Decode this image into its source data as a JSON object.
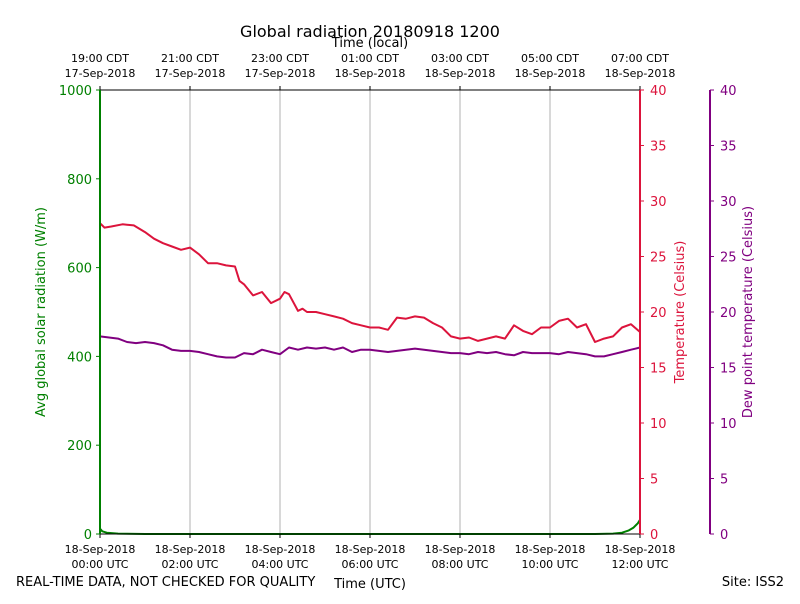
{
  "chart_data": {
    "type": "line",
    "title": "Global radiation 20180918 1200",
    "top_axis_title": "Time (local)",
    "xlabel": "Time (UTC)",
    "ylabel_left": "Avg global solar radiation (W/m)",
    "ylabel_right": "Temperature (Celsius)",
    "ylabel_far_right": "Dew point temperature (Celsius)",
    "xlim_hours_utc": [
      0,
      12
    ],
    "grid_vertical": true,
    "x_ticks_utc": [
      {
        "hour": 0,
        "line1": "18-Sep-2018",
        "line2": "00:00 UTC"
      },
      {
        "hour": 2,
        "line1": "18-Sep-2018",
        "line2": "02:00 UTC"
      },
      {
        "hour": 4,
        "line1": "18-Sep-2018",
        "line2": "04:00 UTC"
      },
      {
        "hour": 6,
        "line1": "18-Sep-2018",
        "line2": "06:00 UTC"
      },
      {
        "hour": 8,
        "line1": "18-Sep-2018",
        "line2": "08:00 UTC"
      },
      {
        "hour": 10,
        "line1": "18-Sep-2018",
        "line2": "10:00 UTC"
      },
      {
        "hour": 12,
        "line1": "18-Sep-2018",
        "line2": "12:00 UTC"
      }
    ],
    "x_ticks_local": [
      {
        "hour": 0,
        "line1": "19:00 CDT",
        "line2": "17-Sep-2018"
      },
      {
        "hour": 2,
        "line1": "21:00 CDT",
        "line2": "17-Sep-2018"
      },
      {
        "hour": 4,
        "line1": "23:00 CDT",
        "line2": "17-Sep-2018"
      },
      {
        "hour": 6,
        "line1": "01:00 CDT",
        "line2": "18-Sep-2018"
      },
      {
        "hour": 8,
        "line1": "03:00 CDT",
        "line2": "18-Sep-2018"
      },
      {
        "hour": 10,
        "line1": "05:00 CDT",
        "line2": "18-Sep-2018"
      },
      {
        "hour": 12,
        "line1": "07:00 CDT",
        "line2": "18-Sep-2018"
      }
    ],
    "y_left": {
      "ylim": [
        0,
        1000
      ],
      "ticks": [
        0,
        200,
        400,
        600,
        800,
        1000
      ],
      "color": "#008000"
    },
    "y_right": {
      "ylim": [
        0,
        40
      ],
      "ticks": [
        0,
        5,
        10,
        15,
        20,
        25,
        30,
        35,
        40
      ],
      "color": "#dc143c"
    },
    "y_far_right": {
      "ylim": [
        0,
        40
      ],
      "ticks": [
        0,
        5,
        10,
        15,
        20,
        25,
        30,
        35,
        40
      ],
      "color": "#800080"
    },
    "series": [
      {
        "name": "Avg global solar radiation",
        "axis": "left",
        "color": "#008000",
        "x": [
          0,
          0.05,
          0.15,
          0.4,
          1,
          3,
          6,
          9,
          11,
          11.4,
          11.6,
          11.75,
          11.85,
          11.95,
          12
        ],
        "values": [
          12,
          6,
          3,
          1,
          0,
          0,
          0,
          0,
          0,
          1,
          3,
          8,
          14,
          24,
          32
        ]
      },
      {
        "name": "Temperature",
        "axis": "right",
        "color": "#dc143c",
        "x": [
          0,
          0.1,
          0.25,
          0.5,
          0.75,
          1.0,
          1.2,
          1.4,
          1.6,
          1.8,
          2.0,
          2.2,
          2.4,
          2.6,
          2.8,
          3.0,
          3.1,
          3.2,
          3.4,
          3.6,
          3.8,
          4.0,
          4.1,
          4.2,
          4.4,
          4.5,
          4.6,
          4.8,
          5.0,
          5.2,
          5.4,
          5.6,
          5.8,
          6.0,
          6.2,
          6.4,
          6.6,
          6.8,
          7.0,
          7.2,
          7.4,
          7.6,
          7.8,
          8.0,
          8.2,
          8.4,
          8.6,
          8.8,
          9.0,
          9.2,
          9.4,
          9.6,
          9.8,
          10.0,
          10.2,
          10.4,
          10.6,
          10.8,
          11.0,
          11.2,
          11.4,
          11.6,
          11.8,
          12.0
        ],
        "values": [
          28.0,
          27.6,
          27.7,
          27.9,
          27.8,
          27.2,
          26.6,
          26.2,
          25.9,
          25.6,
          25.8,
          25.2,
          24.4,
          24.4,
          24.2,
          24.1,
          22.8,
          22.5,
          21.5,
          21.8,
          20.8,
          21.2,
          21.8,
          21.6,
          20.1,
          20.3,
          20.0,
          20.0,
          19.8,
          19.6,
          19.4,
          19.0,
          18.8,
          18.6,
          18.6,
          18.4,
          19.5,
          19.4,
          19.6,
          19.5,
          19.0,
          18.6,
          17.8,
          17.6,
          17.7,
          17.4,
          17.6,
          17.8,
          17.6,
          18.8,
          18.3,
          18.0,
          18.6,
          18.6,
          19.2,
          19.4,
          18.6,
          18.9,
          17.3,
          17.6,
          17.8,
          18.6,
          18.9,
          18.2
        ]
      },
      {
        "name": "Dew point temperature",
        "axis": "far_right",
        "color": "#800080",
        "x": [
          0,
          0.2,
          0.4,
          0.6,
          0.8,
          1.0,
          1.2,
          1.4,
          1.6,
          1.8,
          2.0,
          2.2,
          2.4,
          2.6,
          2.8,
          3.0,
          3.2,
          3.4,
          3.6,
          3.8,
          4.0,
          4.2,
          4.4,
          4.6,
          4.8,
          5.0,
          5.2,
          5.4,
          5.6,
          5.8,
          6.0,
          6.2,
          6.4,
          6.6,
          6.8,
          7.0,
          7.2,
          7.4,
          7.6,
          7.8,
          8.0,
          8.2,
          8.4,
          8.6,
          8.8,
          9.0,
          9.2,
          9.4,
          9.6,
          9.8,
          10.0,
          10.2,
          10.4,
          10.6,
          10.8,
          11.0,
          11.2,
          11.4,
          11.6,
          11.8,
          12.0
        ],
        "values": [
          17.8,
          17.7,
          17.6,
          17.3,
          17.2,
          17.3,
          17.2,
          17.0,
          16.6,
          16.5,
          16.5,
          16.4,
          16.2,
          16.0,
          15.9,
          15.9,
          16.3,
          16.2,
          16.6,
          16.4,
          16.2,
          16.8,
          16.6,
          16.8,
          16.7,
          16.8,
          16.6,
          16.8,
          16.4,
          16.6,
          16.6,
          16.5,
          16.4,
          16.5,
          16.6,
          16.7,
          16.6,
          16.5,
          16.4,
          16.3,
          16.3,
          16.2,
          16.4,
          16.3,
          16.4,
          16.2,
          16.1,
          16.4,
          16.3,
          16.3,
          16.3,
          16.2,
          16.4,
          16.3,
          16.2,
          16.0,
          16.0,
          16.2,
          16.4,
          16.6,
          16.8
        ]
      }
    ]
  },
  "footer": {
    "disclaimer": "REAL-TIME DATA, NOT CHECKED FOR QUALITY",
    "site": "Site: ISS2"
  }
}
